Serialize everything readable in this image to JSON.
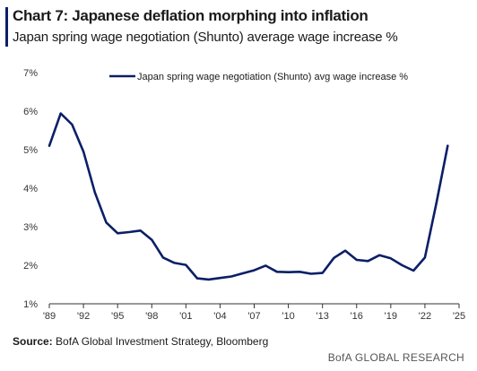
{
  "header": {
    "title": "Chart 7: Japanese deflation morphing into inflation",
    "subtitle": "Japan spring wage negotiation (Shunto) average wage increase %"
  },
  "footer": {
    "source_label": "Source:",
    "source_text": "BofA Global Investment Strategy, Bloomberg",
    "brand": "BofA GLOBAL RESEARCH"
  },
  "colors": {
    "line": "#0b1f66",
    "axis": "#333333"
  },
  "chart_data": {
    "type": "line",
    "title": "Chart 7: Japanese deflation morphing into inflation",
    "subtitle": "Japan spring wage negotiation (Shunto) average wage increase %",
    "xlabel": "",
    "ylabel": "",
    "xlim": [
      1989,
      2025
    ],
    "ylim": [
      1,
      7
    ],
    "grid": false,
    "legend_position": "top-center",
    "x_ticks": [
      "'89",
      "'92",
      "'95",
      "'98",
      "'01",
      "'04",
      "'07",
      "'10",
      "'13",
      "'16",
      "'19",
      "'22",
      "'25"
    ],
    "y_ticks": [
      "1%",
      "2%",
      "3%",
      "4%",
      "5%",
      "6%",
      "7%"
    ],
    "series": [
      {
        "name": "Japan spring wage negotiation (Shunto) avg wage increase %",
        "x": [
          1989,
          1990,
          1991,
          1992,
          1993,
          1994,
          1995,
          1996,
          1997,
          1998,
          1999,
          2000,
          2001,
          2002,
          2003,
          2004,
          2005,
          2006,
          2007,
          2008,
          2009,
          2010,
          2011,
          2012,
          2013,
          2014,
          2015,
          2016,
          2017,
          2018,
          2019,
          2020,
          2021,
          2022,
          2023,
          2024
        ],
        "values": [
          5.1,
          5.94,
          5.65,
          4.95,
          3.89,
          3.11,
          2.83,
          2.86,
          2.9,
          2.66,
          2.2,
          2.06,
          2.01,
          1.66,
          1.63,
          1.67,
          1.71,
          1.79,
          1.87,
          1.99,
          1.83,
          1.82,
          1.83,
          1.78,
          1.8,
          2.19,
          2.38,
          2.14,
          2.11,
          2.26,
          2.18,
          2.0,
          1.86,
          2.2,
          3.6,
          5.1
        ]
      }
    ]
  }
}
